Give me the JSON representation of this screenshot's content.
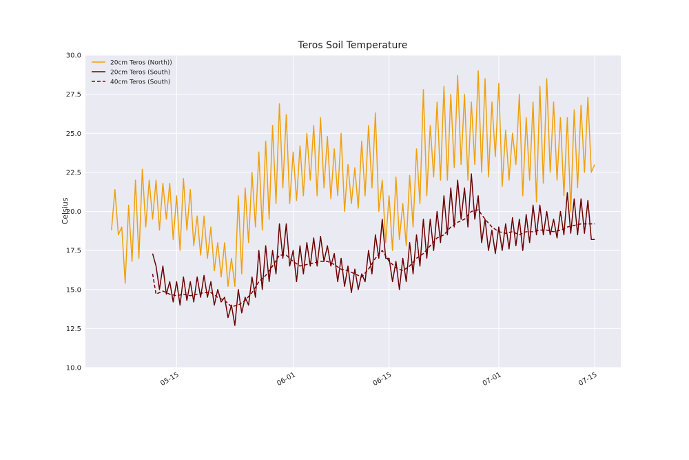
{
  "chart_data": {
    "type": "line",
    "title": "Teros Soil Temperature",
    "y_label": "Celsius",
    "xlim": [
      0.7,
      78.8
    ],
    "ylim": [
      10,
      30
    ],
    "xticks": [
      {
        "value": 14,
        "label": "05-15"
      },
      {
        "value": 31,
        "label": "06-01"
      },
      {
        "value": 45,
        "label": "06-15"
      },
      {
        "value": 61,
        "label": "07-01"
      },
      {
        "value": 75,
        "label": "07-15"
      }
    ],
    "yticks": [
      {
        "value": 10,
        "label": "10.0"
      },
      12.5,
      {
        "value": 15,
        "label": "15.0"
      },
      17.5,
      {
        "value": 20,
        "label": "20.0"
      },
      22.5,
      {
        "value": 25,
        "label": "25.0"
      },
      27.5,
      {
        "value": 30,
        "label": "30.0"
      }
    ],
    "grid": true,
    "legend": "upper left",
    "series": [
      {
        "name": "20cm Teros (North))",
        "color": "#f0a00c",
        "dash": false,
        "x": [
          4.5,
          5,
          5.5,
          6,
          6.5,
          7,
          7.5,
          8,
          8.5,
          9,
          9.5,
          10,
          10.5,
          11,
          11.5,
          12,
          12.5,
          13,
          13.5,
          14,
          14.5,
          15,
          15.5,
          16,
          16.5,
          17,
          17.5,
          18,
          18.5,
          19,
          19.5,
          20,
          20.5,
          21,
          21.5,
          22,
          22.5,
          23,
          23.5,
          24,
          24.5,
          25,
          25.5,
          26,
          26.5,
          27,
          27.5,
          28,
          28.5,
          29,
          29.5,
          30,
          30.5,
          31,
          31.5,
          32,
          32.5,
          33,
          33.5,
          34,
          34.5,
          35,
          35.5,
          36,
          36.5,
          37,
          37.5,
          38,
          38.5,
          39,
          39.5,
          40,
          40.5,
          41,
          41.5,
          42,
          42.5,
          43,
          43.5,
          44,
          44.5,
          45,
          45.5,
          46,
          46.5,
          47,
          47.5,
          48,
          48.5,
          49,
          49.5,
          50,
          50.5,
          51,
          51.5,
          52,
          52.5,
          53,
          53.5,
          54,
          54.5,
          55,
          55.5,
          56,
          56.5,
          57,
          57.5,
          58,
          58.5,
          59,
          59.5,
          60,
          60.5,
          61,
          61.5,
          62,
          62.5,
          63,
          63.5,
          64,
          64.5,
          65,
          65.5,
          66,
          66.5,
          67,
          67.5,
          68,
          68.5,
          69,
          69.5,
          70,
          70.5,
          71,
          71.5,
          72,
          72.5,
          73,
          73.5,
          74,
          74.5,
          75
        ],
        "values": [
          18.8,
          21.4,
          18.5,
          19.0,
          15.4,
          20.4,
          16.8,
          22.0,
          17.0,
          22.7,
          19.0,
          22.0,
          19.5,
          22.0,
          18.8,
          21.8,
          19.5,
          21.8,
          18.2,
          21.0,
          17.5,
          22.1,
          18.8,
          21.4,
          17.8,
          19.7,
          17.2,
          19.7,
          17.0,
          19.0,
          16.2,
          18.0,
          15.8,
          18.0,
          15.2,
          17.0,
          15.2,
          21.0,
          16.0,
          21.5,
          18.0,
          22.5,
          19.0,
          23.8,
          18.8,
          24.5,
          19.5,
          25.5,
          20.5,
          26.9,
          21.5,
          26.2,
          20.5,
          23.8,
          20.7,
          24.2,
          21.0,
          25.0,
          22.0,
          25.5,
          21.0,
          26.0,
          21.5,
          24.8,
          20.8,
          24.0,
          21.0,
          25.0,
          20.0,
          23.0,
          20.5,
          22.8,
          20.2,
          24.5,
          21.0,
          25.5,
          21.5,
          26.3,
          20.0,
          22.0,
          18.0,
          21.0,
          17.5,
          22.2,
          18.2,
          20.5,
          17.8,
          22.3,
          19.0,
          24.0,
          20.5,
          27.8,
          21.0,
          25.5,
          22.2,
          27.0,
          22.0,
          28.0,
          22.0,
          27.5,
          22.8,
          28.7,
          23.0,
          27.5,
          22.0,
          27.0,
          23.0,
          29.0,
          22.5,
          28.5,
          22.2,
          27.0,
          23.5,
          28.2,
          21.6,
          25.2,
          22.0,
          25.0,
          23.0,
          27.5,
          21.0,
          26.0,
          22.0,
          27.0,
          20.6,
          28.0,
          21.8,
          28.5,
          22.5,
          27.0,
          22.0,
          26.0,
          21.0,
          26.0,
          20.0,
          26.5,
          21.5,
          26.8,
          22.5,
          27.3,
          22.5,
          23.0
        ]
      },
      {
        "name": "20cm Teros (South)",
        "color": "#6b0000",
        "dash": false,
        "x": [
          10.5,
          11,
          11.5,
          12,
          12.5,
          13,
          13.5,
          14,
          14.5,
          15,
          15.5,
          16,
          16.5,
          17,
          17.5,
          18,
          18.5,
          19,
          19.5,
          20,
          20.5,
          21,
          21.5,
          22,
          22.5,
          23,
          23.5,
          24,
          24.5,
          25,
          25.5,
          26,
          26.5,
          27,
          27.5,
          28,
          28.5,
          29,
          29.5,
          30,
          30.5,
          31,
          31.5,
          32,
          32.5,
          33,
          33.5,
          34,
          34.5,
          35,
          35.5,
          36,
          36.5,
          37,
          37.5,
          38,
          38.5,
          39,
          39.5,
          40,
          40.5,
          41,
          41.5,
          42,
          42.5,
          43,
          43.5,
          44,
          44.5,
          45,
          45.5,
          46,
          46.5,
          47,
          47.5,
          48,
          48.5,
          49,
          49.5,
          50,
          50.5,
          51,
          51.5,
          52,
          52.5,
          53,
          53.5,
          54,
          54.5,
          55,
          55.5,
          56,
          56.5,
          57,
          57.5,
          58,
          58.5,
          59,
          59.5,
          60,
          60.5,
          61,
          61.5,
          62,
          62.5,
          63,
          63.5,
          64,
          64.5,
          65,
          65.5,
          66,
          66.5,
          67,
          67.5,
          68,
          68.5,
          69,
          69.5,
          70,
          70.5,
          71,
          71.5,
          72,
          72.5,
          73,
          73.5,
          74,
          74.5,
          75
        ],
        "values": [
          17.3,
          16.5,
          15.0,
          16.5,
          14.7,
          15.5,
          14.2,
          15.5,
          14.0,
          15.8,
          14.3,
          15.5,
          14.2,
          15.8,
          14.5,
          15.9,
          14.5,
          15.5,
          14.0,
          15.0,
          14.2,
          14.5,
          13.2,
          14.0,
          12.7,
          15.0,
          13.5,
          14.5,
          14.0,
          15.8,
          14.5,
          17.5,
          15.0,
          17.8,
          15.5,
          17.5,
          16.0,
          19.2,
          17.0,
          19.2,
          16.5,
          17.5,
          15.5,
          17.8,
          16.0,
          18.0,
          16.5,
          18.3,
          16.5,
          18.4,
          16.8,
          17.8,
          16.5,
          17.3,
          15.5,
          17.0,
          15.2,
          16.5,
          14.8,
          16.3,
          15.0,
          16.0,
          15.5,
          17.5,
          16.0,
          18.5,
          17.0,
          19.5,
          17.0,
          17.0,
          15.5,
          16.8,
          15.0,
          17.0,
          15.5,
          18.0,
          16.0,
          18.5,
          16.5,
          19.5,
          17.0,
          19.5,
          17.5,
          20.0,
          18.0,
          21.0,
          18.5,
          21.5,
          19.0,
          22.0,
          19.5,
          21.5,
          19.0,
          22.4,
          19.5,
          21.0,
          18.0,
          19.5,
          17.5,
          18.8,
          17.3,
          19.0,
          17.5,
          19.2,
          17.6,
          19.6,
          17.8,
          19.5,
          17.5,
          19.8,
          18.0,
          20.4,
          18.5,
          20.4,
          18.5,
          20.0,
          18.5,
          19.5,
          18.3,
          20.0,
          18.5,
          21.2,
          18.6,
          20.8,
          18.5,
          20.8,
          18.6,
          20.7,
          18.2,
          18.2
        ]
      },
      {
        "name": "40cm Teros (South)",
        "color": "#7a0000",
        "dash": true,
        "x": [
          10.5,
          11,
          12,
          13,
          14,
          15,
          16,
          17,
          18,
          19,
          20,
          21,
          22,
          23,
          24,
          25,
          26,
          27,
          28,
          29,
          30,
          31,
          32,
          33,
          34,
          35,
          36,
          37,
          38,
          39,
          40,
          41,
          42,
          43,
          44,
          45,
          46,
          47,
          48,
          49,
          50,
          51,
          52,
          53,
          54,
          55,
          56,
          57,
          58,
          59,
          60,
          61,
          62,
          63,
          64,
          65,
          66,
          67,
          68,
          69,
          70,
          71,
          72,
          73,
          74,
          75
        ],
        "values": [
          16.0,
          14.7,
          14.9,
          14.7,
          14.6,
          14.7,
          14.6,
          14.7,
          14.8,
          14.8,
          14.5,
          14.3,
          13.9,
          14.0,
          14.3,
          14.8,
          15.5,
          15.9,
          16.5,
          17.2,
          17.2,
          16.8,
          16.5,
          16.6,
          16.7,
          16.8,
          16.8,
          16.6,
          16.3,
          16.2,
          16.0,
          15.8,
          16.3,
          17.0,
          17.5,
          16.8,
          16.4,
          16.2,
          16.5,
          17.0,
          17.3,
          17.8,
          18.3,
          18.5,
          19.0,
          19.3,
          19.5,
          20.0,
          20.1,
          19.5,
          19.0,
          18.7,
          18.6,
          18.7,
          18.5,
          18.7,
          18.7,
          18.8,
          18.8,
          18.7,
          18.8,
          19.0,
          19.1,
          19.2,
          19.2,
          19.2
        ]
      }
    ]
  }
}
